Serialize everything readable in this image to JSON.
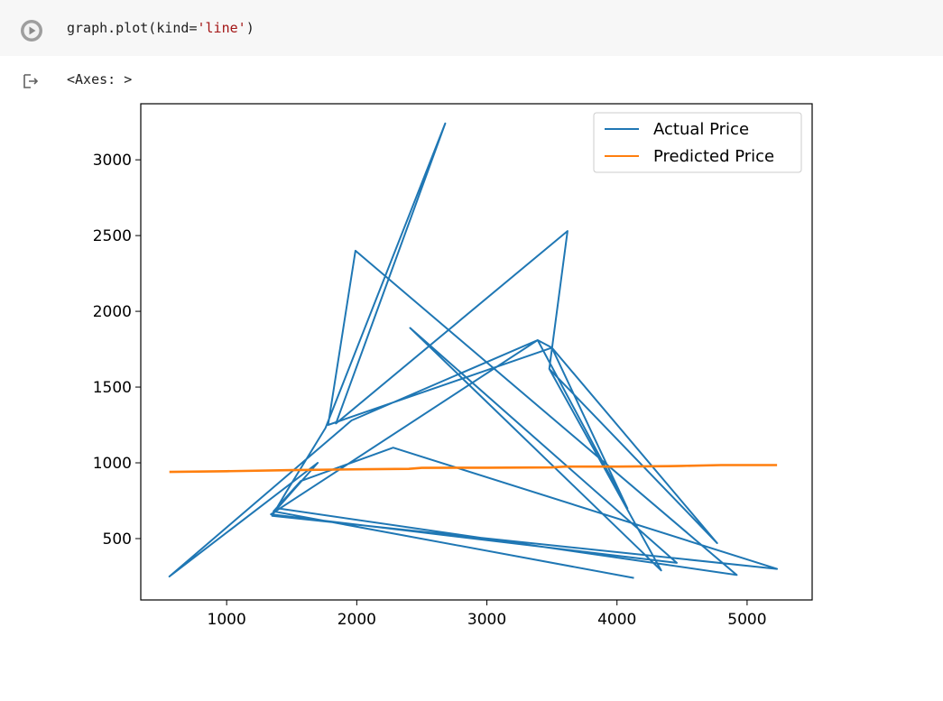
{
  "cell": {
    "code_prefix": "graph.plot(kind=",
    "code_string": "'line'",
    "code_suffix": ")",
    "run_icon": "play-circle-icon"
  },
  "output": {
    "icon": "output-redirect-icon",
    "text": "<Axes: >"
  },
  "colors": {
    "actual": "#1f77b4",
    "predicted": "#ff7f0e"
  },
  "chart_data": {
    "type": "line",
    "title": "",
    "xlabel": "",
    "ylabel": "",
    "xlim": [
      340,
      5500
    ],
    "ylim": [
      95,
      3370
    ],
    "xticks": [
      1000,
      2000,
      3000,
      4000,
      5000
    ],
    "yticks": [
      500,
      1000,
      1500,
      2000,
      2500,
      3000
    ],
    "legend_position": "top-right",
    "grid": false,
    "series": [
      {
        "name": "Actual Price",
        "color": "#1f77b4",
        "x": [
          4130,
          1360,
          1570,
          2280,
          5230,
          1350,
          1460,
          1760,
          2680,
          1840,
          3620,
          3480,
          4340,
          2410,
          4460,
          1340,
          3390,
          4080,
          3500,
          1780,
          1990,
          4920,
          1390,
          1700,
          560,
          1960,
          3390,
          3500,
          4770,
          3480
        ],
        "y": [
          240,
          680,
          880,
          1100,
          300,
          650,
          810,
          1230,
          3240,
          1260,
          2530,
          1620,
          290,
          1890,
          340,
          660,
          1810,
          700,
          1760,
          1250,
          2400,
          260,
          700,
          1000,
          250,
          1280,
          1810,
          1760,
          470,
          1620
        ]
      },
      {
        "name": "Predicted Price",
        "color": "#ff7f0e",
        "x": [
          560,
          1000,
          1500,
          2000,
          2400,
          2500,
          3000,
          3500,
          3600,
          4000,
          4400,
          4500,
          4800,
          5230
        ],
        "y": [
          940,
          945,
          952,
          957,
          960,
          967,
          968,
          970,
          975,
          975,
          978,
          980,
          985,
          985
        ]
      }
    ]
  }
}
